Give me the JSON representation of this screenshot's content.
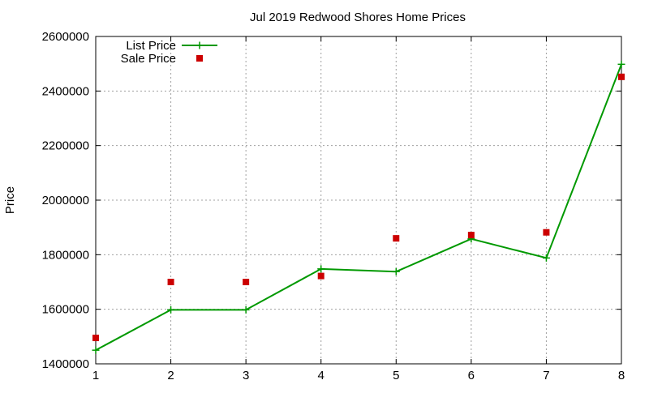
{
  "chart_data": {
    "type": "line",
    "title": "Jul 2019 Redwood Shores Home Prices",
    "xlabel": "",
    "ylabel": "Price",
    "xlim": [
      1,
      8
    ],
    "ylim": [
      1400000,
      2600000
    ],
    "x_ticks": [
      1,
      2,
      3,
      4,
      5,
      6,
      7,
      8
    ],
    "y_ticks": [
      1400000,
      1600000,
      1800000,
      2000000,
      2200000,
      2400000,
      2600000
    ],
    "grid": true,
    "legend_position": "top-left",
    "series": [
      {
        "name": "List Price",
        "style": "line+cross",
        "color": "#009900",
        "points": [
          [
            1,
            1450000
          ],
          [
            2,
            1598000
          ],
          [
            3,
            1598000
          ],
          [
            4,
            1748000
          ],
          [
            5,
            1738000
          ],
          [
            6,
            1858000
          ],
          [
            7,
            1788000
          ],
          [
            8,
            2498000
          ]
        ]
      },
      {
        "name": "Sale Price",
        "style": "square",
        "color": "#cc0000",
        "points": [
          [
            1,
            1495000
          ],
          [
            2,
            1700000
          ],
          [
            3,
            1700000
          ],
          [
            4,
            1722000
          ],
          [
            5,
            1860000
          ],
          [
            6,
            1872000
          ],
          [
            7,
            1882000
          ],
          [
            8,
            2452000
          ]
        ]
      }
    ]
  }
}
